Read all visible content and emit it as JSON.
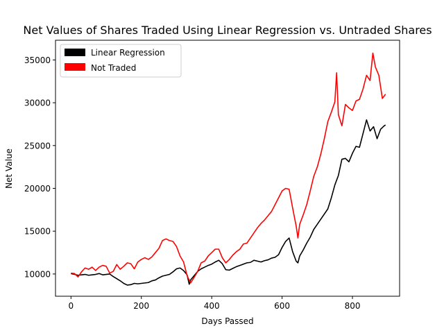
{
  "chart_data": {
    "type": "line",
    "title": "Net Values of Shares Traded Using Linear Regression vs. Untraded Shares",
    "xlabel": "Days Passed",
    "ylabel": "Net Value",
    "xlim": [
      -44,
      934
    ],
    "ylim": [
      7400,
      37300
    ],
    "xticks": [
      0,
      200,
      400,
      600,
      800
    ],
    "yticks": [
      10000,
      15000,
      20000,
      25000,
      30000,
      35000
    ],
    "grid": false,
    "legend_position": "top-left",
    "series": [
      {
        "name": "Linear Regression",
        "color": "#000000",
        "points": [
          [
            0,
            10050
          ],
          [
            10,
            9950
          ],
          [
            20,
            9850
          ],
          [
            30,
            9900
          ],
          [
            40,
            9950
          ],
          [
            50,
            9850
          ],
          [
            60,
            9900
          ],
          [
            70,
            9950
          ],
          [
            80,
            10050
          ],
          [
            90,
            9900
          ],
          [
            100,
            9950
          ],
          [
            110,
            10000
          ],
          [
            120,
            9700
          ],
          [
            130,
            9450
          ],
          [
            140,
            9200
          ],
          [
            150,
            8900
          ],
          [
            160,
            8700
          ],
          [
            170,
            8750
          ],
          [
            180,
            8900
          ],
          [
            190,
            8850
          ],
          [
            200,
            8900
          ],
          [
            210,
            8950
          ],
          [
            220,
            9000
          ],
          [
            230,
            9200
          ],
          [
            240,
            9300
          ],
          [
            250,
            9550
          ],
          [
            260,
            9750
          ],
          [
            270,
            9850
          ],
          [
            280,
            9950
          ],
          [
            290,
            10250
          ],
          [
            300,
            10600
          ],
          [
            310,
            10700
          ],
          [
            320,
            10400
          ],
          [
            330,
            9900
          ],
          [
            336,
            8800
          ],
          [
            340,
            9300
          ],
          [
            350,
            9800
          ],
          [
            360,
            10300
          ],
          [
            370,
            10600
          ],
          [
            380,
            10800
          ],
          [
            390,
            11000
          ],
          [
            400,
            11150
          ],
          [
            410,
            11400
          ],
          [
            420,
            11600
          ],
          [
            430,
            11200
          ],
          [
            440,
            10500
          ],
          [
            450,
            10450
          ],
          [
            460,
            10650
          ],
          [
            470,
            10850
          ],
          [
            480,
            11000
          ],
          [
            490,
            11150
          ],
          [
            500,
            11300
          ],
          [
            510,
            11350
          ],
          [
            520,
            11600
          ],
          [
            530,
            11500
          ],
          [
            540,
            11400
          ],
          [
            550,
            11550
          ],
          [
            560,
            11650
          ],
          [
            570,
            11850
          ],
          [
            580,
            11950
          ],
          [
            590,
            12250
          ],
          [
            600,
            13100
          ],
          [
            610,
            13800
          ],
          [
            620,
            14200
          ],
          [
            630,
            12600
          ],
          [
            640,
            11500
          ],
          [
            645,
            11300
          ],
          [
            650,
            12100
          ],
          [
            660,
            12800
          ],
          [
            670,
            13600
          ],
          [
            680,
            14300
          ],
          [
            690,
            15200
          ],
          [
            700,
            15800
          ],
          [
            710,
            16400
          ],
          [
            720,
            17000
          ],
          [
            730,
            17600
          ],
          [
            740,
            18900
          ],
          [
            750,
            20400
          ],
          [
            760,
            21500
          ],
          [
            770,
            23400
          ],
          [
            780,
            23500
          ],
          [
            790,
            23100
          ],
          [
            800,
            24100
          ],
          [
            810,
            24900
          ],
          [
            820,
            24800
          ],
          [
            830,
            26400
          ],
          [
            840,
            28000
          ],
          [
            850,
            26700
          ],
          [
            860,
            27200
          ],
          [
            870,
            25800
          ],
          [
            880,
            26900
          ],
          [
            890,
            27300
          ],
          [
            894,
            27400
          ]
        ]
      },
      {
        "name": "Not Traded",
        "color": "#ff0000",
        "points": [
          [
            0,
            10100
          ],
          [
            10,
            10050
          ],
          [
            20,
            9650
          ],
          [
            30,
            10250
          ],
          [
            40,
            10700
          ],
          [
            50,
            10550
          ],
          [
            60,
            10800
          ],
          [
            70,
            10400
          ],
          [
            80,
            10800
          ],
          [
            90,
            11000
          ],
          [
            100,
            10900
          ],
          [
            110,
            10100
          ],
          [
            120,
            10300
          ],
          [
            130,
            11100
          ],
          [
            140,
            10550
          ],
          [
            150,
            10900
          ],
          [
            160,
            11300
          ],
          [
            170,
            11200
          ],
          [
            180,
            10600
          ],
          [
            190,
            11400
          ],
          [
            200,
            11700
          ],
          [
            210,
            11900
          ],
          [
            220,
            11700
          ],
          [
            230,
            12000
          ],
          [
            240,
            12500
          ],
          [
            250,
            13000
          ],
          [
            260,
            13900
          ],
          [
            270,
            14100
          ],
          [
            280,
            13900
          ],
          [
            290,
            13800
          ],
          [
            300,
            13200
          ],
          [
            310,
            12100
          ],
          [
            320,
            11400
          ],
          [
            330,
            9800
          ],
          [
            340,
            8950
          ],
          [
            350,
            9600
          ],
          [
            360,
            10300
          ],
          [
            370,
            11300
          ],
          [
            380,
            11500
          ],
          [
            390,
            12100
          ],
          [
            400,
            12500
          ],
          [
            410,
            12900
          ],
          [
            420,
            12900
          ],
          [
            430,
            11900
          ],
          [
            440,
            11300
          ],
          [
            450,
            11700
          ],
          [
            460,
            12200
          ],
          [
            470,
            12600
          ],
          [
            480,
            12900
          ],
          [
            490,
            13500
          ],
          [
            500,
            13600
          ],
          [
            510,
            14200
          ],
          [
            520,
            14800
          ],
          [
            530,
            15400
          ],
          [
            540,
            15900
          ],
          [
            550,
            16300
          ],
          [
            560,
            16800
          ],
          [
            570,
            17300
          ],
          [
            580,
            18100
          ],
          [
            590,
            18900
          ],
          [
            600,
            19700
          ],
          [
            610,
            20000
          ],
          [
            620,
            19900
          ],
          [
            630,
            17700
          ],
          [
            640,
            15600
          ],
          [
            645,
            14200
          ],
          [
            650,
            15800
          ],
          [
            660,
            16900
          ],
          [
            670,
            18100
          ],
          [
            680,
            19700
          ],
          [
            690,
            21400
          ],
          [
            700,
            22500
          ],
          [
            710,
            24000
          ],
          [
            720,
            25800
          ],
          [
            730,
            27800
          ],
          [
            740,
            28900
          ],
          [
            750,
            30100
          ],
          [
            755,
            33500
          ],
          [
            760,
            28600
          ],
          [
            770,
            27300
          ],
          [
            780,
            29800
          ],
          [
            790,
            29400
          ],
          [
            800,
            29100
          ],
          [
            810,
            30200
          ],
          [
            820,
            30400
          ],
          [
            830,
            31600
          ],
          [
            840,
            33200
          ],
          [
            850,
            32600
          ],
          [
            858,
            35800
          ],
          [
            865,
            34200
          ],
          [
            875,
            33200
          ],
          [
            885,
            30500
          ],
          [
            894,
            31000
          ]
        ]
      }
    ]
  }
}
